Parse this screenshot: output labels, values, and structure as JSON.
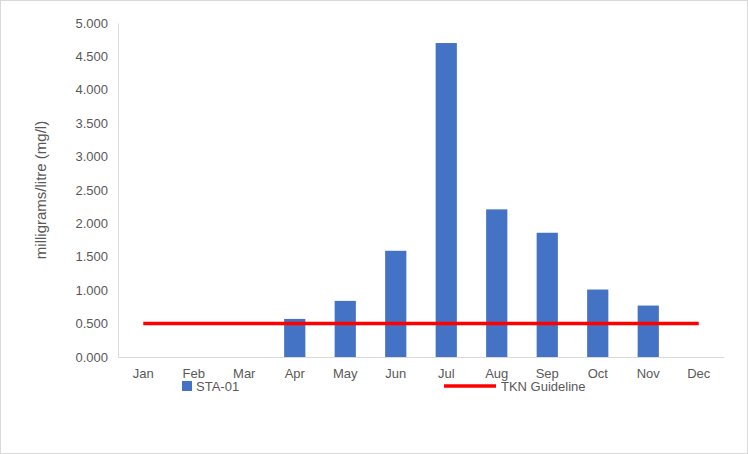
{
  "chart_data": {
    "type": "bar",
    "y_label": "milligrams/litre (mg/l)",
    "categories": [
      "Jan",
      "Feb",
      "Mar",
      "Apr",
      "May",
      "Jun",
      "Jul",
      "Aug",
      "Sep",
      "Oct",
      "Nov",
      "Dec"
    ],
    "series": [
      {
        "name": "STA-01",
        "type": "bar",
        "color": "#4472c4",
        "values": [
          null,
          null,
          null,
          0.57,
          0.84,
          1.59,
          4.7,
          2.21,
          1.86,
          1.01,
          0.77,
          null
        ]
      },
      {
        "name": "TKN Guideline",
        "type": "line",
        "color": "#ff0000",
        "values": [
          0.5,
          0.5,
          0.5,
          0.5,
          0.5,
          0.5,
          0.5,
          0.5,
          0.5,
          0.5,
          0.5,
          0.5
        ]
      }
    ],
    "ylim": [
      0,
      5
    ],
    "yticks": [
      {
        "value": 0,
        "label": "0.000"
      },
      {
        "value": 0.5,
        "label": "0.500"
      },
      {
        "value": 1,
        "label": "1.000"
      },
      {
        "value": 1.5,
        "label": "1.500"
      },
      {
        "value": 2,
        "label": "2.000"
      },
      {
        "value": 2.5,
        "label": "2.500"
      },
      {
        "value": 3,
        "label": "3.000"
      },
      {
        "value": 3.5,
        "label": "3.500"
      },
      {
        "value": 4,
        "label": "4.000"
      },
      {
        "value": 4.5,
        "label": "4.500"
      },
      {
        "value": 5,
        "label": "5.000"
      }
    ],
    "grid": false,
    "legend": "bottom"
  }
}
